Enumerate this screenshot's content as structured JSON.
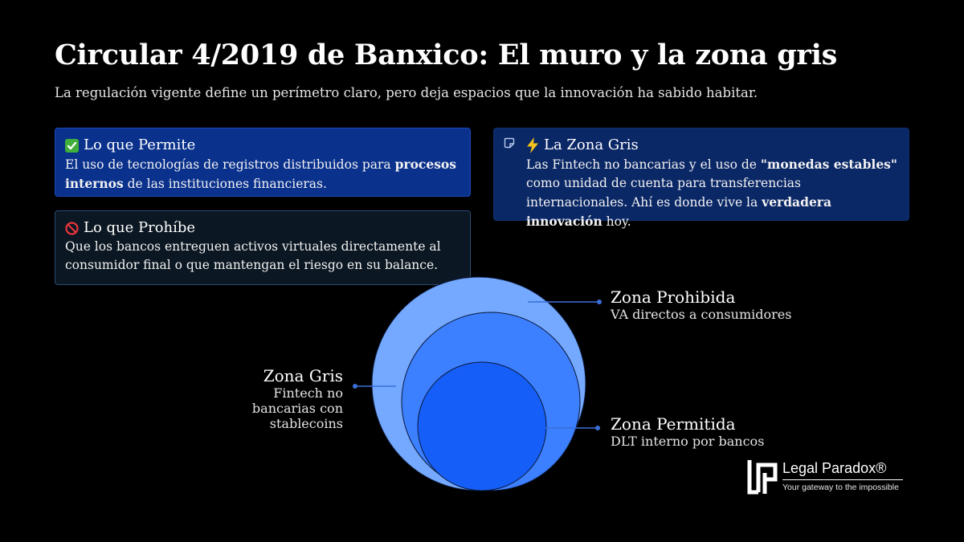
{
  "header": {
    "title": "Circular 4/2019 de Banxico: El muro y la zona gris",
    "subtitle": "La regulación vigente define un perímetro claro, pero deja espacios que la innovación ha sabido habitar."
  },
  "cards": {
    "permite": {
      "icon": "check-mark-icon",
      "title": "Lo que Permite",
      "text_1": "El uso de tecnologías de registros distribuidos para ",
      "bold_1": "procesos internos",
      "text_2": " de las instituciones financieras."
    },
    "prohibe": {
      "icon": "no-entry-icon",
      "title": "Lo que Prohíbe",
      "text": "Que los bancos entreguen activos virtuales directamente al consumidor final o que mantengan el riesgo en su balance."
    },
    "zona_gris": {
      "icon": "lightning-icon",
      "title": "La Zona Gris",
      "text_1": "Las Fintech no bancarias y el uso de ",
      "bold_1": "\"monedas estables\"",
      "text_2": " como unidad de cuenta para transferencias internacionales. Ahí es donde vive la ",
      "bold_2": "verdadera innovación",
      "text_3": " hoy."
    }
  },
  "diagram": {
    "zones": [
      {
        "title": "Zona Prohibida",
        "subtitle": "VA directos a consumidores",
        "color": "#75a8ff"
      },
      {
        "title": "Zona Gris",
        "subtitle": "Fintech no\nbancarias con\nstablecoins",
        "color": "#3c7fff"
      },
      {
        "title": "Zona Permitida",
        "subtitle": "DLT interno por bancos",
        "color": "#155ef8"
      }
    ],
    "leader_color": "#3a6fd8"
  },
  "logo": {
    "name": "Legal Paradox®",
    "tagline": "Your gateway to the impossible"
  }
}
